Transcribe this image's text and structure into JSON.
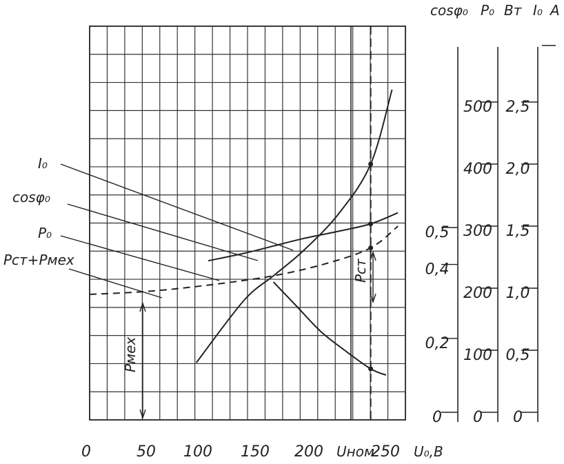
{
  "chart_data": {
    "type": "line",
    "title": "",
    "x_axis": {
      "label": "U₀,B",
      "range": [
        0,
        260
      ],
      "ticks": [
        0,
        50,
        100,
        150,
        200,
        250
      ],
      "tick_labels": [
        "0",
        "50",
        "100",
        "150",
        "200",
        "250"
      ],
      "marker_label": "Uном",
      "marker_value": 237
    },
    "right_axes": [
      {
        "label": "cosφ₀",
        "unit": "",
        "tick_labels": [
          "0",
          "0,2",
          "0,4",
          "0,5"
        ],
        "tick_values": [
          0,
          0.2,
          0.4,
          0.5
        ]
      },
      {
        "label": "P₀",
        "unit": "Вт",
        "tick_labels": [
          "0",
          "100",
          "200",
          "300",
          "400",
          "500"
        ],
        "tick_values": [
          0,
          100,
          200,
          300,
          400,
          500
        ]
      },
      {
        "label": "I₀",
        "unit": "A",
        "tick_labels": [
          "0",
          "0,5",
          "1,0",
          "1,5",
          "2,0",
          "2,5"
        ],
        "tick_values": [
          0,
          0.5,
          1.0,
          1.5,
          2.0,
          2.5
        ]
      }
    ],
    "grid": true,
    "series": [
      {
        "name": "I₀",
        "scale": "I₀ A",
        "x": [
          90,
          130,
          155,
          180,
          210,
          237,
          255
        ],
        "y": [
          0.4,
          0.9,
          1.1,
          1.3,
          1.6,
          2.0,
          2.6
        ]
      },
      {
        "name": "cosφ₀",
        "scale": "cosφ₀",
        "x": [
          100,
          130,
          155,
          180,
          210,
          237,
          260
        ],
        "y": [
          0.41,
          0.43,
          0.45,
          0.47,
          0.49,
          0.51,
          0.54
        ]
      },
      {
        "name": "P₀",
        "scale": "P₀ Вт",
        "x": [
          155,
          175,
          195,
          215,
          237,
          250
        ],
        "y": [
          210,
          170,
          130,
          100,
          70,
          60
        ]
      },
      {
        "name": "Pст+Pмех",
        "scale": "P₀ Вт",
        "x": [
          0,
          50,
          100,
          155,
          200,
          237,
          260
        ],
        "y": [
          190,
          195,
          205,
          220,
          240,
          265,
          300
        ]
      }
    ],
    "annotations": [
      {
        "text": "Pмех"
      },
      {
        "text": "Pст"
      }
    ]
  }
}
